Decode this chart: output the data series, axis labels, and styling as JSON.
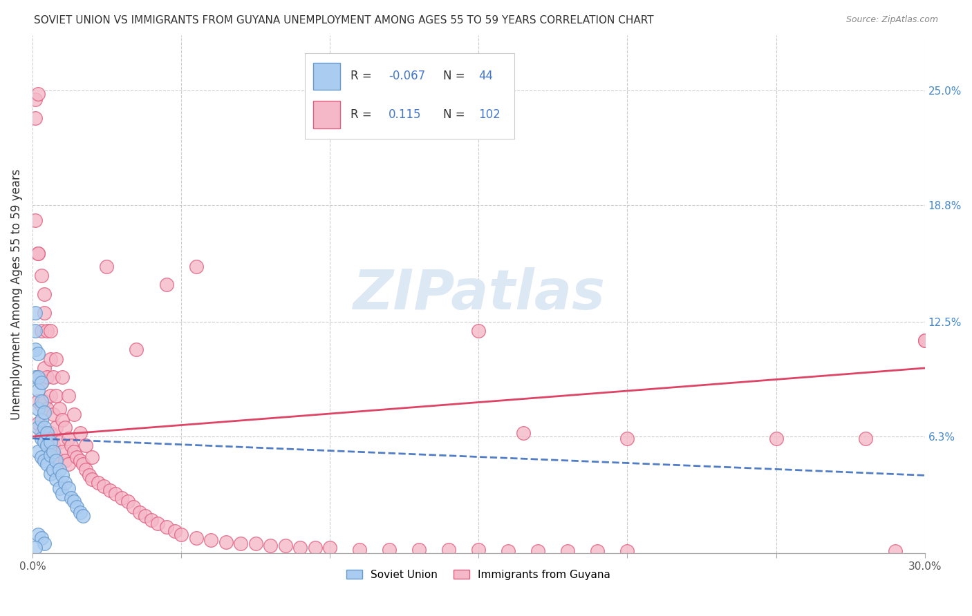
{
  "title": "SOVIET UNION VS IMMIGRANTS FROM GUYANA UNEMPLOYMENT AMONG AGES 55 TO 59 YEARS CORRELATION CHART",
  "source": "Source: ZipAtlas.com",
  "ylabel": "Unemployment Among Ages 55 to 59 years",
  "x_min": 0.0,
  "x_max": 0.3,
  "y_min": 0.0,
  "y_max": 0.28,
  "x_ticks": [
    0.0,
    0.05,
    0.1,
    0.15,
    0.2,
    0.25,
    0.3
  ],
  "x_tick_labels": [
    "0.0%",
    "",
    "",
    "",
    "",
    "",
    "30.0%"
  ],
  "right_y_ticks": [
    0.0,
    0.063,
    0.125,
    0.188,
    0.25
  ],
  "right_y_labels": [
    "",
    "6.3%",
    "12.5%",
    "18.8%",
    "25.0%"
  ],
  "blue_R": -0.067,
  "blue_N": 44,
  "pink_R": 0.115,
  "pink_N": 102,
  "blue_color": "#aaccf0",
  "pink_color": "#f5b8c8",
  "blue_edge_color": "#6699cc",
  "pink_edge_color": "#e06080",
  "blue_line_color": "#3366bb",
  "pink_line_color": "#dd4466",
  "watermark": "ZIPatlas",
  "watermark_color": "#dde8f5",
  "legend_label_blue": "Soviet Union",
  "legend_label_pink": "Immigrants from Guyana",
  "blue_scatter_x": [
    0.001,
    0.001,
    0.001,
    0.001,
    0.002,
    0.002,
    0.002,
    0.002,
    0.002,
    0.002,
    0.003,
    0.003,
    0.003,
    0.003,
    0.003,
    0.004,
    0.004,
    0.004,
    0.004,
    0.005,
    0.005,
    0.005,
    0.006,
    0.006,
    0.006,
    0.007,
    0.007,
    0.008,
    0.008,
    0.009,
    0.009,
    0.01,
    0.01,
    0.011,
    0.012,
    0.013,
    0.014,
    0.015,
    0.016,
    0.017,
    0.002,
    0.003,
    0.004,
    0.001
  ],
  "blue_scatter_y": [
    0.13,
    0.12,
    0.11,
    0.095,
    0.108,
    0.095,
    0.088,
    0.078,
    0.068,
    0.055,
    0.092,
    0.082,
    0.072,
    0.062,
    0.052,
    0.076,
    0.068,
    0.06,
    0.05,
    0.065,
    0.058,
    0.048,
    0.06,
    0.053,
    0.043,
    0.055,
    0.045,
    0.05,
    0.04,
    0.045,
    0.035,
    0.042,
    0.032,
    0.038,
    0.035,
    0.03,
    0.028,
    0.025,
    0.022,
    0.02,
    0.01,
    0.008,
    0.005,
    0.003
  ],
  "pink_scatter_x": [
    0.001,
    0.001,
    0.001,
    0.002,
    0.002,
    0.002,
    0.002,
    0.002,
    0.003,
    0.003,
    0.003,
    0.003,
    0.003,
    0.004,
    0.004,
    0.004,
    0.004,
    0.005,
    0.005,
    0.005,
    0.005,
    0.006,
    0.006,
    0.006,
    0.007,
    0.007,
    0.007,
    0.008,
    0.008,
    0.008,
    0.009,
    0.009,
    0.01,
    0.01,
    0.011,
    0.011,
    0.012,
    0.012,
    0.013,
    0.014,
    0.015,
    0.016,
    0.017,
    0.018,
    0.019,
    0.02,
    0.022,
    0.024,
    0.026,
    0.028,
    0.03,
    0.032,
    0.034,
    0.036,
    0.038,
    0.04,
    0.042,
    0.045,
    0.048,
    0.05,
    0.055,
    0.06,
    0.065,
    0.07,
    0.075,
    0.08,
    0.085,
    0.09,
    0.095,
    0.1,
    0.11,
    0.12,
    0.13,
    0.14,
    0.15,
    0.16,
    0.17,
    0.18,
    0.19,
    0.2,
    0.002,
    0.004,
    0.006,
    0.008,
    0.01,
    0.012,
    0.014,
    0.016,
    0.018,
    0.02,
    0.025,
    0.035,
    0.045,
    0.055,
    0.15,
    0.2,
    0.25,
    0.28,
    0.29,
    0.3,
    0.165,
    0.3
  ],
  "pink_scatter_y": [
    0.245,
    0.235,
    0.18,
    0.248,
    0.162,
    0.095,
    0.082,
    0.07,
    0.15,
    0.12,
    0.092,
    0.08,
    0.065,
    0.13,
    0.1,
    0.082,
    0.065,
    0.12,
    0.095,
    0.078,
    0.06,
    0.105,
    0.085,
    0.065,
    0.095,
    0.075,
    0.058,
    0.085,
    0.068,
    0.052,
    0.078,
    0.06,
    0.072,
    0.055,
    0.068,
    0.05,
    0.062,
    0.048,
    0.058,
    0.055,
    0.052,
    0.05,
    0.048,
    0.045,
    0.042,
    0.04,
    0.038,
    0.036,
    0.034,
    0.032,
    0.03,
    0.028,
    0.025,
    0.022,
    0.02,
    0.018,
    0.016,
    0.014,
    0.012,
    0.01,
    0.008,
    0.007,
    0.006,
    0.005,
    0.005,
    0.004,
    0.004,
    0.003,
    0.003,
    0.003,
    0.002,
    0.002,
    0.002,
    0.002,
    0.002,
    0.001,
    0.001,
    0.001,
    0.001,
    0.001,
    0.162,
    0.14,
    0.12,
    0.105,
    0.095,
    0.085,
    0.075,
    0.065,
    0.058,
    0.052,
    0.155,
    0.11,
    0.145,
    0.155,
    0.12,
    0.062,
    0.062,
    0.062,
    0.001,
    0.115,
    0.065,
    0.115
  ],
  "pink_line_start_y": 0.063,
  "pink_line_end_y": 0.1,
  "blue_line_start_y": 0.062,
  "blue_line_end_y": 0.042
}
